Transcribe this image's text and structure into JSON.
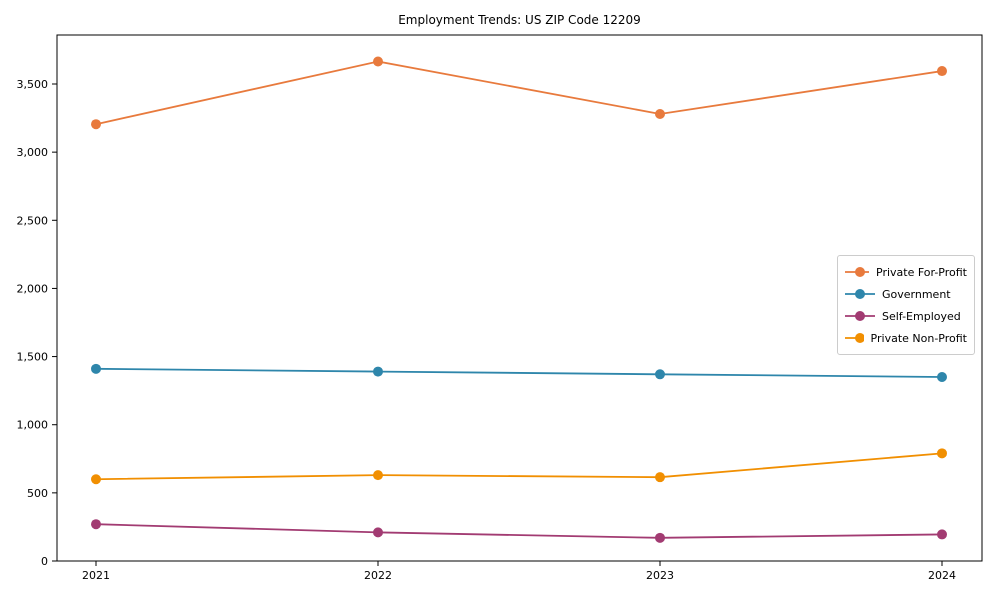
{
  "chart_data": {
    "type": "line",
    "title": "Employment Trends: US ZIP Code 12209",
    "xlabel": "",
    "ylabel": "",
    "categories": [
      "2021",
      "2022",
      "2023",
      "2024"
    ],
    "series": [
      {
        "name": "Private For-Profit",
        "color": "#E87A3D",
        "values": [
          3205,
          3665,
          3280,
          3595
        ]
      },
      {
        "name": "Government",
        "color": "#2E86AB",
        "values": [
          1410,
          1390,
          1370,
          1350
        ]
      },
      {
        "name": "Self-Employed",
        "color": "#A23B72",
        "values": [
          270,
          210,
          170,
          195
        ]
      },
      {
        "name": "Private Non-Profit",
        "color": "#F18F01",
        "values": [
          600,
          630,
          615,
          790
        ]
      }
    ],
    "ylim": [
      0,
      3860
    ],
    "ytick_values": [
      0,
      500,
      1000,
      1500,
      2000,
      2500,
      3000,
      3500
    ],
    "ytick_labels": [
      "0",
      "500",
      "1,000",
      "1,500",
      "2,000",
      "2,500",
      "3,000",
      "3,500"
    ],
    "grid": false,
    "marker": "circle",
    "legend_position": "center-right",
    "axis_color": "#000000",
    "background_color": "#ffffff"
  }
}
